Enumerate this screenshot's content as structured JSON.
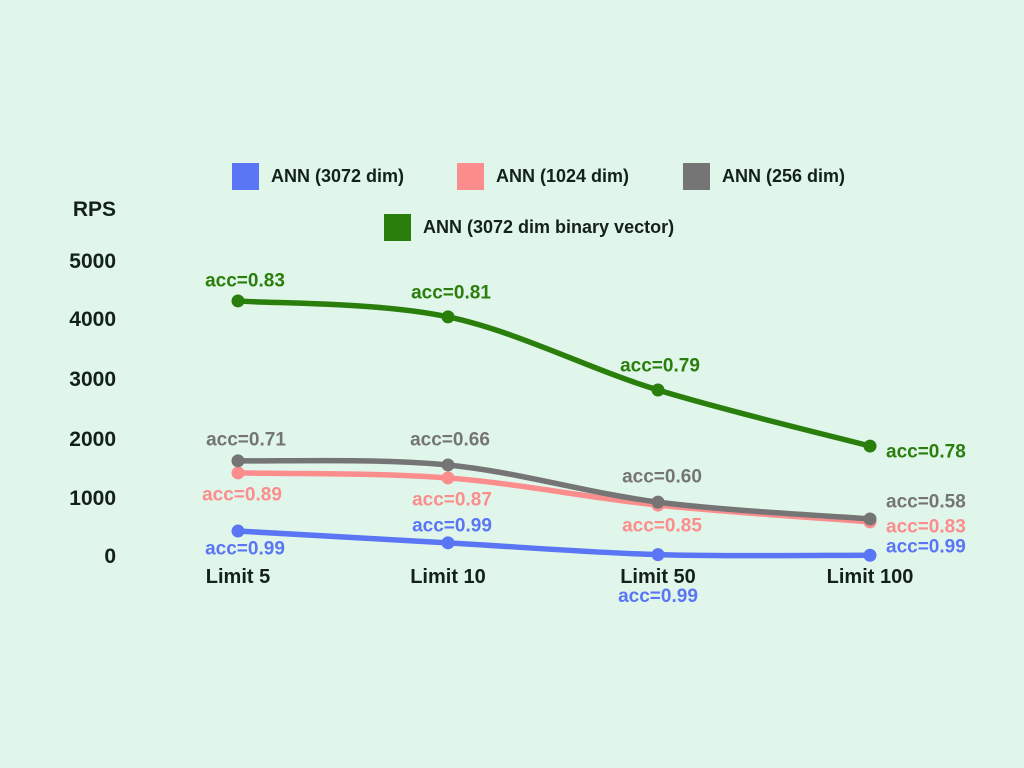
{
  "colors": {
    "background": "#e1f6ea",
    "text": "#13211a",
    "blue": "#5a76f5",
    "pink": "#fb8d8d",
    "gray": "#757575",
    "green": "#2a7e0c"
  },
  "chart_data": {
    "type": "line",
    "ylabel": "RPS",
    "xlabel": "",
    "grid": false,
    "legend_position": "top",
    "ylim": [
      0,
      5000
    ],
    "y_ticks": [
      "5000",
      "4000",
      "3000",
      "2000",
      "1000",
      "0"
    ],
    "categories": [
      "Limit 5",
      "Limit 10",
      "Limit 50",
      "Limit 100"
    ],
    "series": [
      {
        "name": "ANN (3072 dim)",
        "color": "#5a76f5",
        "values": [
          440,
          240,
          40,
          30
        ],
        "acc_labels": [
          "acc=0.99",
          "acc=0.99",
          "acc=0.99",
          "acc=0.99"
        ],
        "label_layout": [
          [
            7,
            18,
            "middle"
          ],
          [
            4,
            -17,
            "middle"
          ],
          [
            0,
            42,
            "middle"
          ],
          [
            16,
            -8,
            "start"
          ]
        ]
      },
      {
        "name": "ANN (1024 dim)",
        "color": "#fb8d8d",
        "values": [
          1425,
          1340,
          880,
          595
        ],
        "acc_labels": [
          "acc=0.89",
          "acc=0.87",
          "acc=0.85",
          "acc=0.83"
        ],
        "label_layout": [
          [
            4,
            22,
            "middle"
          ],
          [
            4,
            22,
            "middle"
          ],
          [
            4,
            21,
            "middle"
          ],
          [
            16,
            5,
            "start"
          ]
        ]
      },
      {
        "name": "ANN (256 dim)",
        "color": "#757575",
        "values": [
          1630,
          1560,
          930,
          645
        ],
        "acc_labels": [
          "acc=0.71",
          "acc=0.66",
          "acc=0.60",
          "acc=0.58"
        ],
        "label_layout": [
          [
            8,
            -21,
            "middle"
          ],
          [
            2,
            -25,
            "middle"
          ],
          [
            4,
            -25,
            "middle"
          ],
          [
            16,
            -17,
            "start"
          ]
        ]
      },
      {
        "name": "ANN (3072 dim binary vector)",
        "color": "#2a7e0c",
        "values": [
          4340,
          4070,
          2830,
          1880
        ],
        "acc_labels": [
          "acc=0.83",
          "acc=0.81",
          "acc=0.79",
          "acc=0.78"
        ],
        "label_layout": [
          [
            7,
            -20,
            "middle"
          ],
          [
            3,
            -24,
            "middle"
          ],
          [
            2,
            -24,
            "middle"
          ],
          [
            16,
            6,
            "start"
          ]
        ]
      }
    ]
  }
}
